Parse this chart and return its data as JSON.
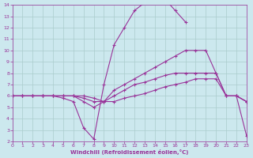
{
  "bg_color": "#cce8ee",
  "line_color": "#993399",
  "grid_color": "#aacccc",
  "xlabel": "Windchill (Refroidissement éolien,°C)",
  "xlim": [
    0,
    23
  ],
  "ylim": [
    2,
    14
  ],
  "xticks": [
    0,
    1,
    2,
    3,
    4,
    5,
    6,
    7,
    8,
    9,
    10,
    11,
    12,
    13,
    14,
    15,
    16,
    17,
    18,
    19,
    20,
    21,
    22,
    23
  ],
  "yticks": [
    2,
    3,
    4,
    5,
    6,
    7,
    8,
    9,
    10,
    11,
    12,
    13,
    14
  ],
  "series": [
    {
      "x": [
        0,
        1,
        2,
        3,
        4,
        5,
        6,
        7,
        8,
        9,
        10,
        11,
        12,
        13,
        14,
        15,
        16,
        17,
        18,
        19,
        20,
        21,
        22,
        23
      ],
      "y": [
        6,
        6,
        6,
        6,
        6,
        5.8,
        5.5,
        3.2,
        2.2,
        7.0,
        10.5,
        12.0,
        13.5,
        14.2,
        14.5,
        14.5,
        13.5,
        12.5,
        null,
        null,
        null,
        6.0,
        6.0,
        5.5
      ]
    },
    {
      "x": [
        0,
        1,
        2,
        3,
        4,
        5,
        6,
        7,
        8,
        9,
        10,
        11,
        12,
        13,
        14,
        15,
        16,
        17,
        18,
        19,
        20,
        21,
        22,
        23
      ],
      "y": [
        6,
        6,
        6,
        6,
        6,
        6,
        6,
        5.5,
        5.0,
        5.5,
        6.5,
        7.0,
        7.5,
        8.0,
        8.5,
        9.0,
        9.5,
        10.0,
        10.0,
        10.0,
        8.0,
        6.0,
        6.0,
        5.5
      ]
    },
    {
      "x": [
        0,
        1,
        2,
        3,
        4,
        5,
        6,
        7,
        8,
        9,
        10,
        11,
        12,
        13,
        14,
        15,
        16,
        17,
        18,
        19,
        20,
        21,
        22,
        23
      ],
      "y": [
        6,
        6,
        6,
        6,
        6,
        6,
        6,
        5.8,
        5.5,
        5.5,
        6.0,
        6.5,
        7.0,
        7.2,
        7.5,
        7.8,
        8.0,
        8.0,
        8.0,
        8.0,
        8.0,
        6.0,
        6.0,
        5.5
      ]
    },
    {
      "x": [
        0,
        1,
        2,
        3,
        4,
        5,
        6,
        7,
        8,
        9,
        10,
        11,
        12,
        13,
        14,
        15,
        16,
        17,
        18,
        19,
        20,
        21,
        22,
        23
      ],
      "y": [
        6,
        6,
        6,
        6,
        6,
        6,
        6,
        6,
        5.8,
        5.5,
        5.5,
        5.8,
        6.0,
        6.2,
        6.5,
        6.8,
        7.0,
        7.2,
        7.5,
        7.5,
        7.5,
        6.0,
        6.0,
        2.5
      ]
    }
  ]
}
